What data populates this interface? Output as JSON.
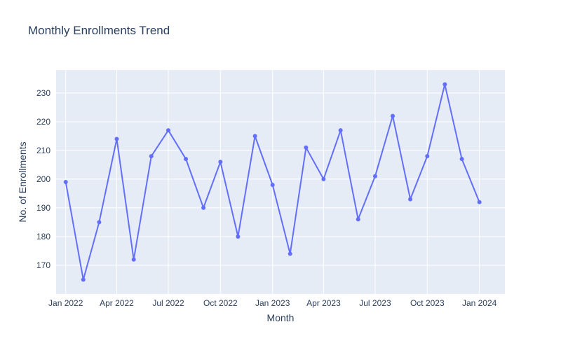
{
  "chart_data": {
    "type": "line",
    "title": "Monthly Enrollments Trend",
    "xlabel": "Month",
    "ylabel": "No. of Enrollments",
    "x": [
      "2022-01",
      "2022-02",
      "2022-03",
      "2022-04",
      "2022-05",
      "2022-06",
      "2022-07",
      "2022-08",
      "2022-09",
      "2022-10",
      "2022-11",
      "2022-12",
      "2023-01",
      "2023-02",
      "2023-03",
      "2023-04",
      "2023-05",
      "2023-06",
      "2023-07",
      "2023-08",
      "2023-09",
      "2023-10",
      "2023-11",
      "2023-12",
      "2024-01"
    ],
    "series": [
      {
        "values": [
          199,
          165,
          185,
          214,
          172,
          208,
          217,
          207,
          190,
          206,
          180,
          215,
          198,
          174,
          211,
          200,
          217,
          186,
          201,
          222,
          193,
          208,
          233,
          207,
          192
        ]
      }
    ],
    "xlim": [
      "2021-12-15",
      "2024-02-15"
    ],
    "ylim": [
      160,
      238
    ],
    "x_ticks": [
      {
        "date": "2022-01",
        "label": "Jan 2022"
      },
      {
        "date": "2022-04",
        "label": "Apr 2022"
      },
      {
        "date": "2022-07",
        "label": "Jul 2022"
      },
      {
        "date": "2022-10",
        "label": "Oct 2022"
      },
      {
        "date": "2023-01",
        "label": "Jan 2023"
      },
      {
        "date": "2023-04",
        "label": "Apr 2023"
      },
      {
        "date": "2023-07",
        "label": "Jul 2023"
      },
      {
        "date": "2023-10",
        "label": "Oct 2023"
      },
      {
        "date": "2024-01",
        "label": "Jan 2024"
      }
    ],
    "y_ticks": [
      170,
      180,
      190,
      200,
      210,
      220,
      230
    ],
    "grid": true,
    "colors": {
      "line": "#636efa",
      "plot_bg": "#e5ecf6",
      "grid": "#ffffff",
      "text": "#2a3f5f"
    }
  }
}
